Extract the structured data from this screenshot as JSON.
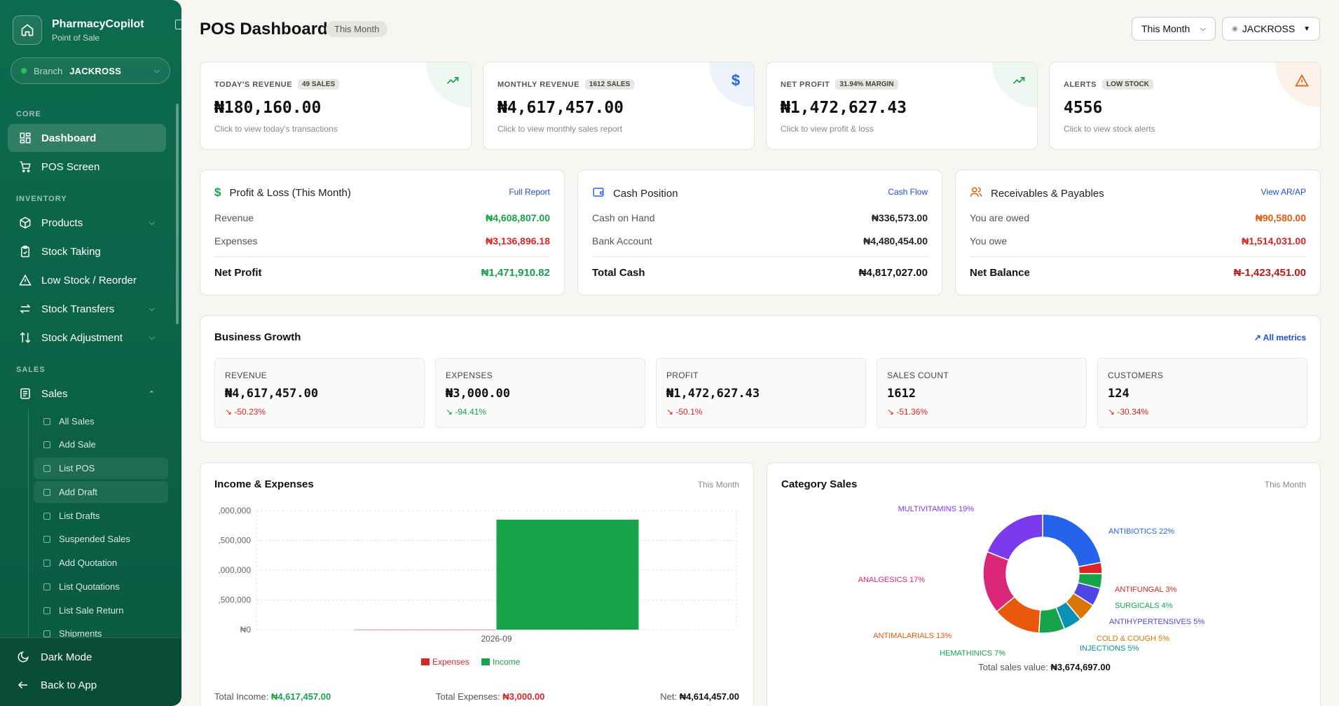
{
  "sidebar": {
    "brand_name": "PharmacyCopilot",
    "brand_sub": "Point of Sale",
    "branch_label": "Branch",
    "branch_value": "JACKROSS",
    "sections": {
      "core": "CORE",
      "inventory": "INVENTORY",
      "sales": "SALES"
    },
    "nav": {
      "dashboard": "Dashboard",
      "pos": "POS Screen",
      "products": "Products",
      "stock_taking": "Stock Taking",
      "low_stock": "Low Stock / Reorder",
      "transfers": "Stock Transfers",
      "adjustment": "Stock Adjustment",
      "sales": "Sales"
    },
    "sales_sub": [
      "All Sales",
      "Add Sale",
      "List POS",
      "Add Draft",
      "List Drafts",
      "Suspended Sales",
      "Add Quotation",
      "List Quotations",
      "List Sale Return",
      "Shipments"
    ],
    "dark_mode": "Dark Mode",
    "back": "Back to App"
  },
  "header": {
    "title": "POS Dashboard",
    "badge": "This Month",
    "period_select": "This Month",
    "branch_select": "JACKROSS"
  },
  "kpis": [
    {
      "label": "TODAY'S REVENUE",
      "pill": "49 SALES",
      "value": "₦180,160.00",
      "hint": "Click to view today's transactions",
      "icon": "trend-up-icon"
    },
    {
      "label": "MONTHLY REVENUE",
      "pill": "1612 SALES",
      "value": "₦4,617,457.00",
      "hint": "Click to view monthly sales report",
      "icon": "dollar-icon"
    },
    {
      "label": "NET PROFIT",
      "pill": "31.94% MARGIN",
      "value": "₦1,472,627.43",
      "hint": "Click to view profit & loss",
      "icon": "trend-up-icon"
    },
    {
      "label": "ALERTS",
      "pill": "LOW STOCK",
      "value": "4556",
      "hint": "Click to view stock alerts",
      "icon": "warning-icon"
    }
  ],
  "pnl": {
    "title": "Profit & Loss (This Month)",
    "link": "Full Report",
    "revenue_label": "Revenue",
    "revenue": "₦4,608,807.00",
    "expenses_label": "Expenses",
    "expenses": "₦3,136,896.18",
    "net_label": "Net Profit",
    "net": "₦1,471,910.82"
  },
  "cash": {
    "title": "Cash Position",
    "link": "Cash Flow",
    "hand_label": "Cash on Hand",
    "hand": "₦336,573.00",
    "bank_label": "Bank Account",
    "bank": "₦4,480,454.00",
    "total_label": "Total Cash",
    "total": "₦4,817,027.00"
  },
  "recv": {
    "title": "Receivables & Payables",
    "link": "View AR/AP",
    "owed_label": "You are owed",
    "owed": "₦90,580.00",
    "owe_label": "You owe",
    "owe": "₦1,514,031.00",
    "net_label": "Net Balance",
    "net": "₦-1,423,451.00"
  },
  "growth": {
    "title": "Business Growth",
    "link": "All metrics",
    "metrics": [
      {
        "label": "REVENUE",
        "value": "₦4,617,457.00",
        "change": "-50.23%"
      },
      {
        "label": "EXPENSES",
        "value": "₦3,000.00",
        "change": "-94.41%"
      },
      {
        "label": "PROFIT",
        "value": "₦1,472,627.43",
        "change": "-50.1%"
      },
      {
        "label": "SALES COUNT",
        "value": "1612",
        "change": "-51.36%"
      },
      {
        "label": "CUSTOMERS",
        "value": "124",
        "change": "-30.34%"
      }
    ]
  },
  "income_chart": {
    "title": "Income & Expenses",
    "period": "This Month",
    "footer": {
      "income_label": "Total Income:",
      "income": "₦4,617,457.00",
      "expenses_label": "Total Expenses:",
      "expenses": "₦3,000.00",
      "net_label": "Net:",
      "net": "₦4,614,457.00"
    }
  },
  "category_chart": {
    "title": "Category Sales",
    "period": "This Month",
    "total_label": "Total sales value:",
    "total": "₦3,674,697.00"
  },
  "chart_data": [
    {
      "type": "bar",
      "categories": [
        "2026-09"
      ],
      "series": [
        {
          "name": "Expenses",
          "values": [
            3000
          ],
          "color": "#dc2626"
        },
        {
          "name": "Income",
          "values": [
            4617457
          ],
          "color": "#16a34a"
        }
      ],
      "yticks": [
        ",000,000",
        ",500,000",
        ",000,000",
        ",500,000",
        "₦0"
      ],
      "ylim": [
        0,
        5000000
      ],
      "legend": "bottom"
    },
    {
      "type": "pie",
      "labels": [
        "ANTIBIOTICS 22%",
        "ANTIFUNGAL 3%",
        "SURGICALS 4%",
        "ANTIHYPERTENSIVES 5%",
        "COLD & COUGH 5%",
        "INJECTIONS 5%",
        "HEMATHINICS 7%",
        "ANTIMALARIALS 13%",
        "ANALGESICS 17%",
        "MULTIVITAMINS 19%"
      ],
      "values": [
        22,
        3,
        4,
        5,
        5,
        5,
        7,
        13,
        17,
        19
      ],
      "colors": [
        "#2563eb",
        "#dc2626",
        "#16a34a",
        "#4f46e5",
        "#d97706",
        "#0891b2",
        "#16a34a",
        "#ea580c",
        "#db2777",
        "#7c3aed"
      ]
    }
  ]
}
